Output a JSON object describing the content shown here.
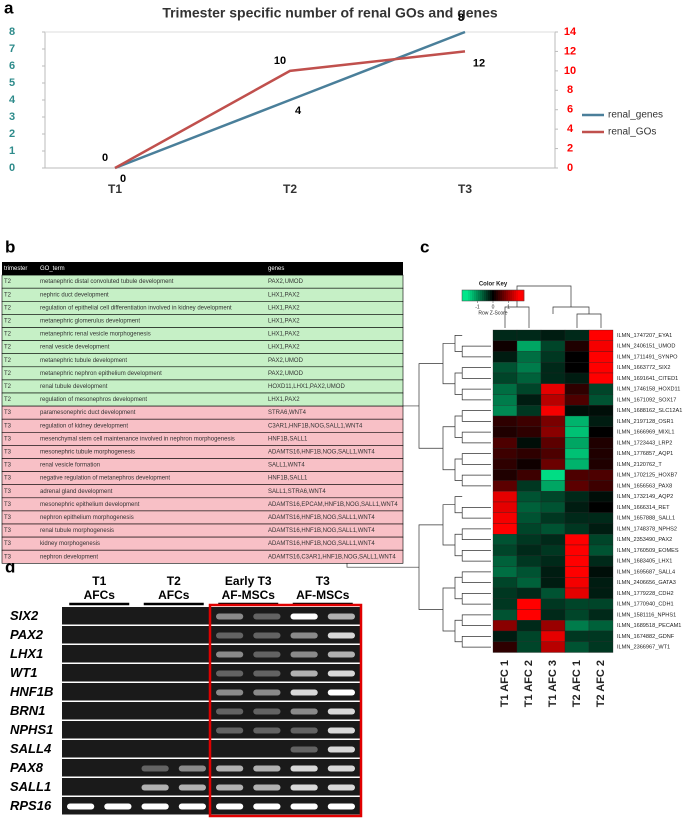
{
  "chart_data": [
    {
      "type": "line",
      "panel": "a",
      "title": "Trimester specific number of renal  GOs and genes",
      "categories": [
        "T1",
        "T2",
        "T3"
      ],
      "series": [
        {
          "name": "renal_genes",
          "color": "#4a7f9a",
          "values": [
            0,
            4,
            8
          ]
        },
        {
          "name": "renal_GOs",
          "color": "#c0504d",
          "values": [
            0,
            10,
            12
          ],
          "axis": "y2"
        }
      ],
      "ylim": [
        0,
        8
      ],
      "yticks": [
        0,
        1,
        2,
        3,
        4,
        5,
        6,
        7,
        8
      ],
      "y_color": "#2e8b8b",
      "y2lim": [
        0,
        14
      ],
      "y2ticks": [
        0,
        2,
        4,
        6,
        8,
        10,
        12,
        14
      ],
      "y2_color": "#ff0000",
      "legend": "right"
    },
    {
      "type": "heatmap",
      "panel": "c",
      "title": "Color Key",
      "zlabel": "Row Z-Score",
      "zlim": [
        -2,
        2
      ],
      "zticks": [
        -1,
        0,
        1
      ],
      "low_color": "#00e68a",
      "mid_color": "#000000",
      "high_color": "#ff0000",
      "categories": [
        "T1 AFC 1",
        "T1 AFC 2",
        "T1 AFC 3",
        "T2 AFC 1",
        "T2 AFC 2"
      ],
      "rows": [
        "ILMN_1747207_EYA1",
        "ILMN_2406151_UMOD",
        "ILMN_1711491_SYNPO",
        "ILMN_1663772_SIX2",
        "ILMN_1691641_CITED1",
        "ILMN_1746158_HOXD11",
        "ILMN_1671092_SOX17",
        "ILMN_1688162_SLC12A1",
        "ILMN_2197128_OSR1",
        "ILMN_1666969_MIXL1",
        "ILMN_1723443_LRP2",
        "ILMN_1776857_AQP1",
        "ILMN_2120762_T",
        "ILMN_1702125_HOXB7",
        "ILMN_1656563_PAX8",
        "ILMN_1732149_AQP2",
        "ILMN_1666314_RET",
        "ILMN_1657888_SALL1",
        "ILMN_1748378_NPHS2",
        "ILMN_2353490_PAX2",
        "ILMN_1760509_EOMES",
        "ILMN_1683405_LHX1",
        "ILMN_1695687_SALL4",
        "ILMN_2406656_GATA3",
        "ILMN_1779228_CDH2",
        "ILMN_1770940_CDH1",
        "ILMN_1581116_NPHS1",
        "ILMN_1689518_PECAM1",
        "ILMN_1674882_GDNF",
        "ILMN_2366967_WT1"
      ],
      "values": [
        [
          -0.3,
          -0.3,
          -0.2,
          -0.3,
          1.8
        ],
        [
          0.1,
          -1.2,
          -0.5,
          0.2,
          1.6
        ],
        [
          -0.2,
          -0.8,
          -0.4,
          0,
          1.7
        ],
        [
          -0.6,
          -0.9,
          -0.3,
          0,
          1.8
        ],
        [
          -0.5,
          -0.7,
          -0.3,
          -0.2,
          1.7
        ],
        [
          -0.8,
          -0.5,
          1.5,
          0.3,
          -0.5
        ],
        [
          -0.9,
          -0.2,
          1.2,
          0.5,
          -0.6
        ],
        [
          -1.0,
          -0.4,
          1.6,
          -0.1,
          -0.1
        ],
        [
          0.3,
          0.4,
          0.8,
          -1.3,
          -0.2
        ],
        [
          0.2,
          0.3,
          0.9,
          -1.4,
          0
        ],
        [
          0.5,
          -0.1,
          0.6,
          -1.2,
          0.2
        ],
        [
          0.4,
          0.3,
          0.5,
          -1.4,
          0.2
        ],
        [
          0.3,
          0.1,
          0.7,
          -1.3,
          0.2
        ],
        [
          0.2,
          0.4,
          -1.6,
          0.5,
          0.5
        ],
        [
          0.6,
          -0.4,
          -1.2,
          0.6,
          0.4
        ],
        [
          1.5,
          -0.6,
          -0.5,
          -0.3,
          -0.1
        ],
        [
          1.5,
          -0.7,
          -0.6,
          -0.2,
          0
        ],
        [
          1.6,
          -0.6,
          -0.4,
          -0.3,
          -0.3
        ],
        [
          1.7,
          -0.5,
          -0.6,
          -0.4,
          -0.2
        ],
        [
          -0.6,
          -0.4,
          -0.3,
          1.8,
          -0.5
        ],
        [
          -0.5,
          -0.3,
          -0.4,
          1.8,
          -0.6
        ],
        [
          -0.7,
          -0.4,
          -0.3,
          1.7,
          -0.3
        ],
        [
          -0.8,
          -0.6,
          -0.2,
          1.7,
          -0.1
        ],
        [
          -0.5,
          -0.7,
          -0.2,
          1.6,
          -0.2
        ],
        [
          -0.4,
          -0.3,
          -0.6,
          1.5,
          -0.2
        ],
        [
          -0.4,
          1.8,
          -0.4,
          -0.5,
          -0.5
        ],
        [
          -0.6,
          1.7,
          -0.3,
          -0.5,
          -0.3
        ],
        [
          0.9,
          -0.3,
          1.0,
          -0.9,
          -0.7
        ],
        [
          -0.2,
          -0.5,
          1.5,
          -0.4,
          -0.4
        ],
        [
          0.3,
          -0.5,
          1.2,
          -0.6,
          -0.4
        ]
      ]
    }
  ],
  "table": {
    "panel": "b",
    "header": [
      "trimester",
      "GO_term",
      "genes"
    ],
    "colors": {
      "T2": "#c6f0c6",
      "T3": "#f8c0c6"
    },
    "rows": [
      [
        "T2",
        "metanephric distal convoluted tubule development",
        "PAX2,UMOD"
      ],
      [
        "T2",
        "nephric duct development",
        "LHX1,PAX2"
      ],
      [
        "T2",
        "regulation of epithelial cell differentiation involved in kidney development",
        "LHX1,PAX2"
      ],
      [
        "T2",
        "metanephric glomerulus development",
        "LHX1,PAX2"
      ],
      [
        "T2",
        "metanephric renal vesicle morphogenesis",
        "LHX1,PAX2"
      ],
      [
        "T2",
        "renal vesicle development",
        "LHX1,PAX2"
      ],
      [
        "T2",
        "metanephric tubule development",
        "PAX2,UMOD"
      ],
      [
        "T2",
        "metanephric nephron epithelium development",
        "PAX2,UMOD"
      ],
      [
        "T2",
        "renal tubule development",
        "HOXD11,LHX1,PAX2,UMOD"
      ],
      [
        "T2",
        "regulation of mesonephros development",
        "LHX1,PAX2"
      ],
      [
        "T3",
        "paramesonephric duct development",
        "STRA6,WNT4"
      ],
      [
        "T3",
        "regulation of kidney development",
        "C3AR1,HNF1B,NOG,SALL1,WNT4"
      ],
      [
        "T3",
        "mesenchymal stem cell maintenance involved in nephron morphogenesis",
        "HNF1B,SALL1"
      ],
      [
        "T3",
        "mesonephric tubule morphogenesis",
        "ADAMTS16,HNF1B,NOG,SALL1,WNT4"
      ],
      [
        "T3",
        "renal vesicle formation",
        "SALL1,WNT4"
      ],
      [
        "T3",
        "negative regulation of metanephros development",
        "HNF1B,SALL1"
      ],
      [
        "T3",
        "adrenal gland development",
        "SALL1,STRA6,WNT4"
      ],
      [
        "T3",
        "mesonephric epithelium development",
        "ADAMTS16,EPCAM,HNF1B,NOG,SALL1,WNT4"
      ],
      [
        "T3",
        "nephron epithelium morphogenesis",
        "ADAMTS16,HNF1B,NOG,SALL1,WNT4"
      ],
      [
        "T3",
        "renal tubule morphogenesis",
        "ADAMTS16,HNF1B,NOG,SALL1,WNT4"
      ],
      [
        "T3",
        "kidney morphogenesis",
        "ADAMTS16,HNF1B,NOG,SALL1,WNT4"
      ],
      [
        "T3",
        "nephron development",
        "ADAMTS16,C3AR1,HNF1B,NOG,SALL1,WNT4"
      ]
    ]
  },
  "gel": {
    "panel": "d",
    "groups": [
      {
        "name": "T1",
        "sub": "AFCs"
      },
      {
        "name": "T2",
        "sub": "AFCs"
      },
      {
        "name": "Early T3",
        "sub": "AF-MSCs"
      },
      {
        "name": "T3",
        "sub": "AF-MSCs"
      }
    ],
    "genes": [
      "SIX2",
      "PAX2",
      "LHX1",
      "WT1",
      "HNF1B",
      "BRN1",
      "NPHS1",
      "SALL4",
      "PAX8",
      "SALL1",
      "RPS16"
    ]
  }
}
